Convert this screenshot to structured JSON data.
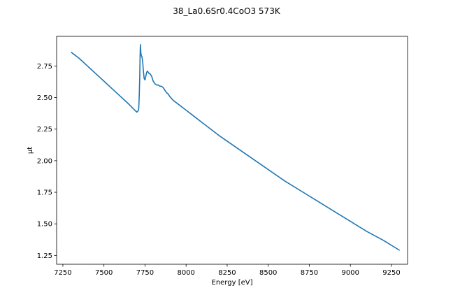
{
  "chart_data": {
    "type": "line",
    "title": "38_La0.6Sr0.4CoO3 573K",
    "xlabel": "Energy [eV]",
    "ylabel": "μt",
    "xlim": [
      7212,
      9348
    ],
    "ylim": [
      1.18,
      2.985
    ],
    "xticks": [
      7250,
      7500,
      7750,
      8000,
      8250,
      8500,
      8750,
      9000,
      9250
    ],
    "xtick_labels": [
      "7250",
      "7500",
      "7750",
      "8000",
      "8250",
      "8500",
      "8750",
      "9000",
      "9250"
    ],
    "yticks": [
      1.25,
      1.5,
      1.75,
      2.0,
      2.25,
      2.5,
      2.75
    ],
    "ytick_labels": [
      "1.25",
      "1.50",
      "1.75",
      "2.00",
      "2.25",
      "2.50",
      "2.75"
    ],
    "grid": false,
    "series_color": "#1f77b4",
    "series": [
      {
        "name": "",
        "x": [
          7300,
          7320,
          7350,
          7400,
          7450,
          7500,
          7550,
          7600,
          7650,
          7680,
          7700,
          7705,
          7710,
          7712,
          7715,
          7718,
          7720,
          7722,
          7725,
          7728,
          7732,
          7736,
          7740,
          7745,
          7750,
          7755,
          7760,
          7765,
          7770,
          7775,
          7780,
          7790,
          7800,
          7810,
          7820,
          7830,
          7840,
          7850,
          7860,
          7870,
          7880,
          7890,
          7900,
          7920,
          7940,
          7960,
          7980,
          8000,
          8050,
          8100,
          8150,
          8200,
          8300,
          8400,
          8500,
          8600,
          8700,
          8800,
          8900,
          9000,
          9100,
          9200,
          9300
        ],
        "y": [
          2.86,
          2.84,
          2.81,
          2.75,
          2.69,
          2.63,
          2.57,
          2.51,
          2.45,
          2.41,
          2.385,
          2.39,
          2.4,
          2.42,
          2.52,
          2.67,
          2.83,
          2.92,
          2.85,
          2.83,
          2.82,
          2.78,
          2.71,
          2.65,
          2.64,
          2.67,
          2.7,
          2.71,
          2.7,
          2.69,
          2.69,
          2.67,
          2.63,
          2.61,
          2.6,
          2.6,
          2.59,
          2.59,
          2.58,
          2.56,
          2.54,
          2.53,
          2.51,
          2.48,
          2.46,
          2.44,
          2.42,
          2.4,
          2.35,
          2.3,
          2.25,
          2.2,
          2.11,
          2.02,
          1.93,
          1.84,
          1.76,
          1.68,
          1.6,
          1.52,
          1.44,
          1.37,
          1.29
        ]
      }
    ]
  }
}
